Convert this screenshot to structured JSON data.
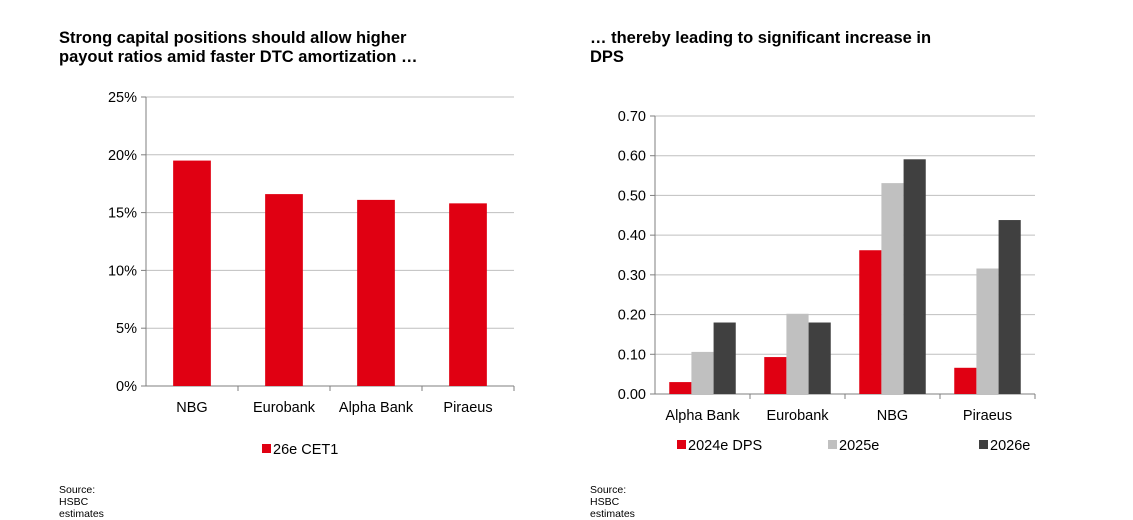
{
  "charts": [
    {
      "title_lines": [
        "Strong capital positions should allow higher",
        "payout ratios amid faster DTC amortization …"
      ],
      "source": "Source: HSBC estimates"
    },
    {
      "title_lines": [
        "… thereby leading to significant increase in",
        "DPS"
      ],
      "source": "Source: HSBC estimates"
    }
  ],
  "chart_data": [
    {
      "type": "bar",
      "title": "Strong capital positions should allow higher payout ratios amid faster DTC amortization …",
      "categories": [
        "NBG",
        "Eurobank",
        "Alpha Bank",
        "Piraeus"
      ],
      "series": [
        {
          "name": "26e CET1",
          "values": [
            19.5,
            16.6,
            16.1,
            15.8
          ],
          "color": "#e00012"
        }
      ],
      "ylim": [
        0,
        25
      ],
      "yticks": [
        0,
        5,
        10,
        15,
        20,
        25
      ],
      "ytick_labels": [
        "0%",
        "5%",
        "10%",
        "15%",
        "20%",
        "25%"
      ],
      "grid": true,
      "legend": "bottom"
    },
    {
      "type": "bar",
      "title": "… thereby leading to significant increase in DPS",
      "categories": [
        "Alpha Bank",
        "Eurobank",
        "NBG",
        "Piraeus"
      ],
      "series": [
        {
          "name": "2024e DPS",
          "values": [
            0.03,
            0.093,
            0.362,
            0.066
          ],
          "color": "#e00012"
        },
        {
          "name": "2025e",
          "values": [
            0.106,
            0.202,
            0.531,
            0.316
          ],
          "color": "#c0c0c0"
        },
        {
          "name": "2026e",
          "values": [
            0.18,
            0.18,
            0.591,
            0.438
          ],
          "color": "#404040"
        }
      ],
      "ylim": [
        0,
        0.7
      ],
      "yticks": [
        0,
        0.1,
        0.2,
        0.3,
        0.4,
        0.5,
        0.6,
        0.7
      ],
      "ytick_labels": [
        "0.00",
        "0.10",
        "0.20",
        "0.30",
        "0.40",
        "0.50",
        "0.60",
        "0.70"
      ],
      "grid": true,
      "legend": "bottom"
    }
  ]
}
